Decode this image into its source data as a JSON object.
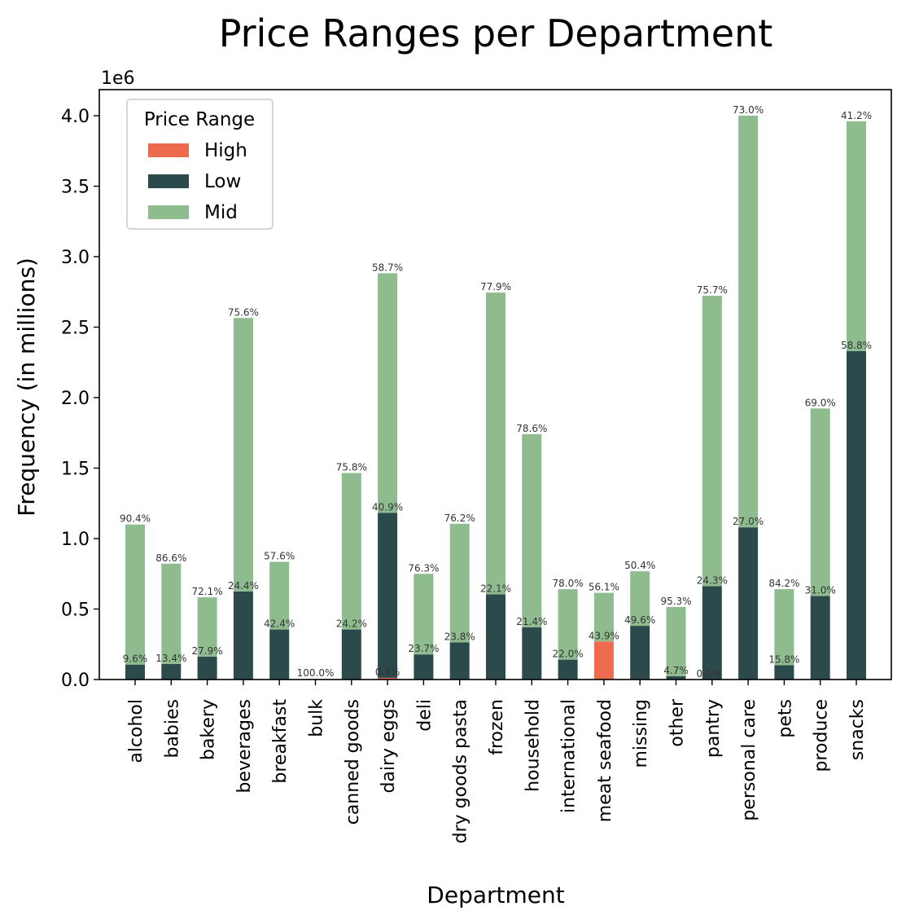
{
  "chart_data": {
    "type": "bar",
    "stacked": true,
    "title": "Price Ranges per Department",
    "xlabel": "Department",
    "ylabel": "Frequency (in millions)",
    "y_offset_text": "1e6",
    "ylim": [
      0,
      4.18
    ],
    "yticks": [
      "0.0",
      "0.5",
      "1.0",
      "1.5",
      "2.0",
      "2.5",
      "3.0",
      "3.5",
      "4.0"
    ],
    "grid": false,
    "legend": {
      "title": "Price Range",
      "placement": "top-left"
    },
    "categories": [
      "alcohol",
      "babies",
      "bakery",
      "beverages",
      "breakfast",
      "bulk",
      "canned goods",
      "dairy eggs",
      "deli",
      "dry goods pasta",
      "frozen",
      "household",
      "international",
      "meat seafood",
      "missing",
      "other",
      "pantry",
      "personal care",
      "pets",
      "produce",
      "snacks"
    ],
    "series": [
      {
        "name": "High",
        "color": "#ee6a4f",
        "values": [
          0,
          0,
          0,
          0,
          0,
          0,
          0,
          0.012,
          0,
          0,
          0,
          0,
          0,
          0.27,
          0,
          0,
          0,
          0,
          0,
          0,
          0
        ],
        "labels": [
          "",
          "",
          "",
          "",
          "",
          "",
          "",
          "0.4%",
          "",
          "",
          "",
          "",
          "",
          "43.9%",
          "",
          "",
          "",
          "",
          "",
          "",
          ""
        ]
      },
      {
        "name": "Low",
        "color": "#2c4a4b",
        "values": [
          0.106,
          0.11,
          0.163,
          0.625,
          0.355,
          0,
          0.355,
          1.17,
          0.178,
          0.263,
          0.605,
          0.371,
          0.141,
          0,
          0.381,
          0.024,
          0.663,
          1.08,
          0.101,
          0.593,
          2.33
        ],
        "labels": [
          "9.6%",
          "13.4%",
          "27.9%",
          "24.4%",
          "42.4%",
          "",
          "24.2%",
          "40.9%",
          "23.7%",
          "23.8%",
          "22.1%",
          "21.4%",
          "22.0%",
          "",
          "49.6%",
          "4.7%",
          "24.3%",
          "27.0%",
          "15.8%",
          "31.0%",
          "58.8%"
        ]
      },
      {
        "name": "Mid",
        "color": "#8fbc8f",
        "values": [
          0.994,
          0.712,
          0.42,
          1.94,
          0.48,
          0.005,
          1.11,
          1.7,
          0.572,
          0.842,
          2.14,
          1.37,
          0.5,
          0.345,
          0.387,
          0.491,
          2.06,
          2.92,
          0.54,
          1.33,
          1.63
        ],
        "labels": [
          "90.4%",
          "86.6%",
          "72.1%",
          "75.6%",
          "57.6%",
          "100.0%",
          "75.8%",
          "58.7%",
          "76.3%",
          "76.2%",
          "77.9%",
          "78.6%",
          "78.0%",
          "56.1%",
          "50.4%",
          "95.3%",
          "75.7%",
          "73.0%",
          "84.2%",
          "69.0%",
          "41.2%"
        ]
      }
    ],
    "extra_labels": [
      {
        "category": "pantry",
        "text": "0.0%"
      }
    ]
  }
}
